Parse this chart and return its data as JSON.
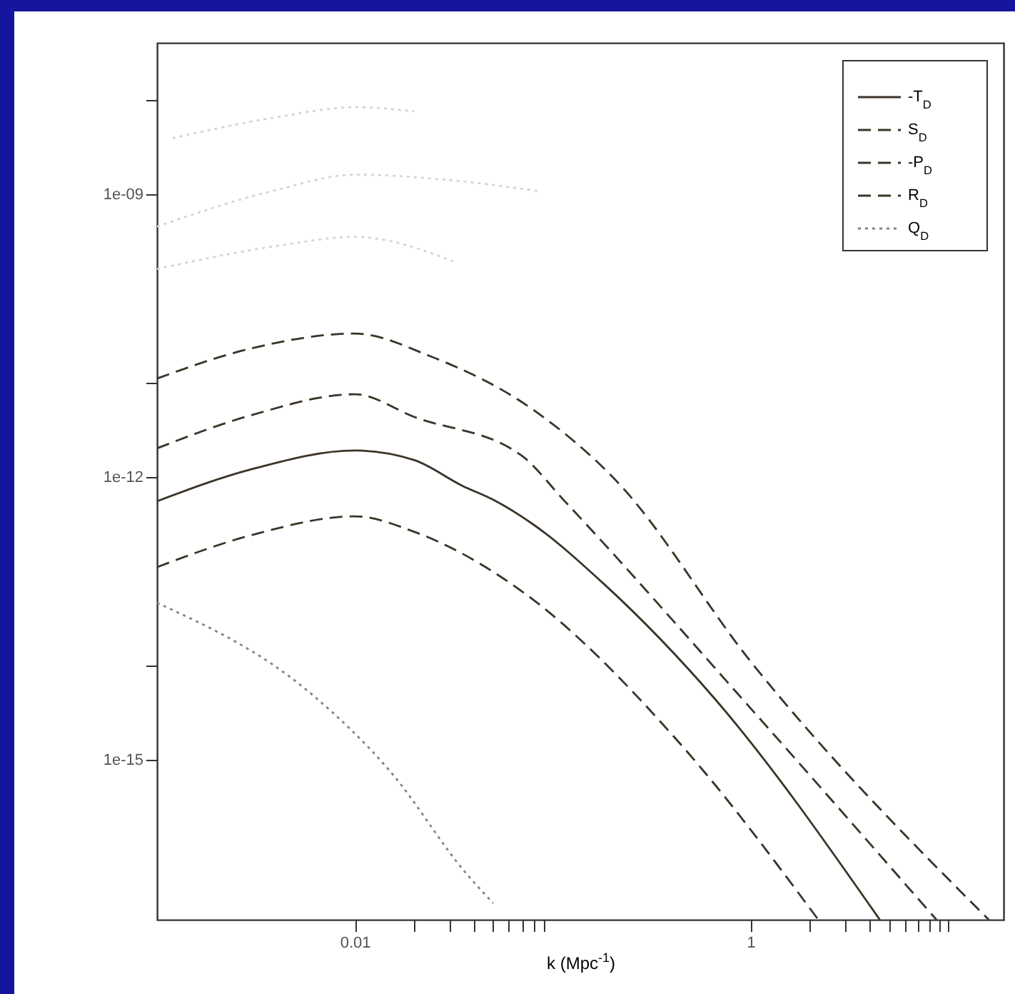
{
  "chart_data": {
    "type": "line",
    "xlabel": "k (Mpc$^{-1}$)",
    "log": "xy",
    "xlim": [
      0.001,
      19
    ],
    "ylim": [
      2e-17,
      4e-08
    ],
    "xticks": [
      0.01,
      {
        "value": 0.02,
        "label": null
      },
      {
        "value": 0.03,
        "label": null
      },
      {
        "value": 0.04,
        "label": null
      },
      {
        "value": 0.05,
        "label": null
      },
      {
        "value": 0.06,
        "label": null
      },
      {
        "value": 0.07,
        "label": null
      },
      {
        "value": 0.08,
        "label": null
      },
      {
        "value": 0.09,
        "label": null
      },
      1,
      {
        "value": 2,
        "label": null
      },
      {
        "value": 3,
        "label": null
      },
      {
        "value": 4,
        "label": null
      },
      {
        "value": 5,
        "label": null
      },
      {
        "value": 6,
        "label": null
      },
      {
        "value": 7,
        "label": null
      },
      {
        "value": 8,
        "label": null
      },
      {
        "value": 9,
        "label": null
      },
      {
        "value": 10,
        "label": null
      }
    ],
    "yticks": [
      {
        "value": 1e-08,
        "label": null
      },
      {
        "value": 1e-09,
        "label": "1e-09"
      },
      {
        "value": 1e-11,
        "label": null
      },
      {
        "value": 1e-12,
        "label": "1e-12"
      },
      {
        "value": 1e-14,
        "label": null
      },
      {
        "value": 1e-15,
        "label": "1e-15"
      }
    ],
    "legend": "top right",
    "grid": false,
    "series": [
      {
        "name": "-T$_{D}$",
        "color": "#3c3428",
        "line_style": "solid",
        "x": [
          0.001,
          0.003,
          0.01,
          0.02,
          0.035,
          0.05,
          0.08,
          0.18,
          0.66,
          4.5
        ],
        "values": [
          5.5e-13,
          1.2e-12,
          1.9e-12,
          1.5e-12,
          8e-13,
          5.7e-13,
          3.1e-13,
          7.4e-14,
          4.4e-15,
          2e-17
        ]
      },
      {
        "name": "S$_{D}$",
        "color": "#3c3428",
        "line_style": "dashed",
        "x": [
          0.001,
          0.003,
          0.01,
          0.024,
          0.08,
          0.21,
          1,
          16
        ],
        "values": [
          1.1e-11,
          2.3e-11,
          3.3e-11,
          1.9e-11,
          5.1e-12,
          9e-13,
          1.1e-14,
          2e-17
        ]
      },
      {
        "name": "-P$_{D}$",
        "color": "#3c3428",
        "line_style": "dashed",
        "x": [
          0.001,
          0.003,
          0.01,
          0.02,
          0.069,
          0.115,
          1,
          8.7
        ],
        "values": [
          2e-12,
          4.5e-12,
          7.5e-12,
          4.3e-12,
          1.7e-12,
          5.5e-13,
          3.5e-15,
          2e-17
        ]
      },
      {
        "name": "R$_{D}$",
        "color": "#3c3428",
        "line_style": "dashed",
        "x": [
          0.001,
          0.003,
          0.01,
          0.02,
          0.069,
          0.45,
          2.2
        ],
        "values": [
          1.1e-13,
          2.4e-13,
          3.8e-13,
          2.6e-13,
          6.2e-14,
          1.4e-15,
          2e-17
        ]
      },
      {
        "name": "Q$_{D}$",
        "color": "#8a8478",
        "line_style": "dotted",
        "x": [
          0.001,
          0.006,
          0.015,
          0.037,
          0.05
        ],
        "values": [
          4.6e-14,
          5e-15,
          7.6e-16,
          6e-17,
          3e-17
        ]
      },
      {
        "color": "#d4d4d4",
        "line_style": "dotted",
        "x": [
          0.0012,
          0.004,
          0.01,
          0.02
        ],
        "values": [
          3.9e-09,
          6.5e-09,
          8.3e-09,
          7.5e-09
        ]
      },
      {
        "color": "#d4d4d4",
        "line_style": "dotted",
        "x": [
          0.001,
          0.004,
          0.01,
          0.03,
          0.085
        ],
        "values": [
          4.5e-10,
          1.1e-09,
          1.6e-09,
          1.4e-09,
          1.07e-09
        ]
      },
      {
        "color": "#d4d4d4",
        "line_style": "dotted",
        "x": [
          0.001,
          0.004,
          0.01,
          0.032
        ],
        "values": [
          1.6e-10,
          2.8e-10,
          3.5e-10,
          1.9e-10
        ]
      }
    ]
  }
}
